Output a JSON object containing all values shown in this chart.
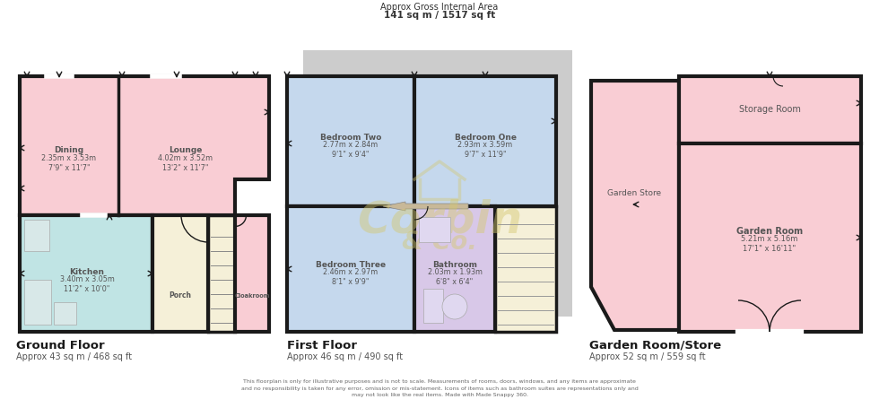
{
  "title_line1": "Approx Gross Internal Area",
  "title_line2": "141 sq m / 1517 sq ft",
  "bg_color": "#ffffff",
  "footer": "This floorplan is only for illustrative purposes and is not to scale. Measurements of rooms, doors, windows, and any items are approximate\nand no responsibility is taken for any error, omission or mis-statement. Icons of items such as bathroom suites are representations only and\nmay not look like the real items. Made with Made Snappy 360.",
  "wall_color": "#1a1a1a",
  "wall_lw": 3.0,
  "text_color": "#555555",
  "pink": "#f9cdd4",
  "blue": "#c5d8ed",
  "teal": "#c0e4e4",
  "cream": "#f5f0d8",
  "lavender": "#d8c8e8",
  "gray_bg": "#c8c8c8"
}
